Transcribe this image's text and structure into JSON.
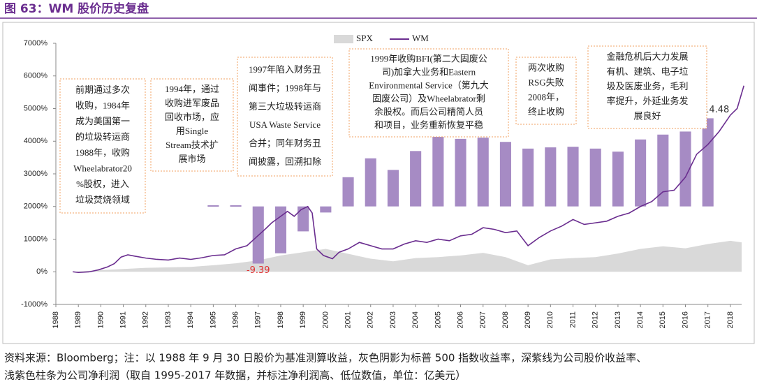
{
  "title": "图 63：WM 股价历史复盘",
  "chart_data": {
    "type": "line",
    "xlim": [
      1988,
      2018.5
    ],
    "xticks": [
      1988,
      1989,
      1990,
      1991,
      1992,
      1993,
      1994,
      1995,
      1996,
      1997,
      1998,
      1999,
      2000,
      2001,
      2002,
      2003,
      2004,
      2005,
      2006,
      2007,
      2008,
      2009,
      2010,
      2011,
      2012,
      2013,
      2014,
      2015,
      2016,
      2017,
      2018
    ],
    "ylim": [
      -1000,
      7000
    ],
    "yticks": [
      {
        "value": -1000,
        "label": "-1000%"
      },
      {
        "value": 0,
        "label": "0%"
      },
      {
        "value": 1000,
        "label": "1000%"
      },
      {
        "value": 2000,
        "label": "2000%"
      },
      {
        "value": 3000,
        "label": "3000%"
      },
      {
        "value": 4000,
        "label": "4000%"
      },
      {
        "value": 5000,
        "label": "5000%"
      },
      {
        "value": 6000,
        "label": "6000%"
      },
      {
        "value": 7000,
        "label": "7000%"
      }
    ],
    "y2lim": [
      -16.1,
      26.8
    ],
    "legend": "top",
    "series": [
      {
        "name": "SPX",
        "type": "area",
        "color": "#d9d9d9",
        "x": [
          1988.75,
          1990,
          1992,
          1994,
          1995,
          1996,
          1997,
          1998,
          1999,
          2000,
          2001,
          2002,
          2003,
          2004,
          2005,
          2006,
          2007,
          2008,
          2009,
          2010,
          2011,
          2012,
          2013,
          2014,
          2015,
          2016,
          2017,
          2018,
          2018.5
        ],
        "values": [
          0,
          50,
          120,
          150,
          200,
          260,
          350,
          500,
          600,
          700,
          550,
          400,
          320,
          420,
          450,
          500,
          580,
          450,
          200,
          380,
          420,
          450,
          560,
          700,
          780,
          720,
          850,
          950,
          900
        ]
      },
      {
        "name": "WM",
        "type": "line",
        "color": "#6a2d8f",
        "x": [
          1988.75,
          1989,
          1989.5,
          1989.9,
          1990.3,
          1990.6,
          1990.9,
          1991.2,
          1991.5,
          1992,
          1992.5,
          1993,
          1993.5,
          1994,
          1994.5,
          1995,
          1995.5,
          1996,
          1996.5,
          1996.9,
          1997.3,
          1997.6,
          1997.9,
          1998.3,
          1998.6,
          1998.9,
          1999.2,
          1999.4,
          1999.6,
          1999.9,
          2000.3,
          2000.6,
          2001,
          2001.5,
          2002,
          2002.5,
          2003,
          2003.5,
          2004,
          2004.5,
          2005,
          2005.5,
          2006,
          2006.5,
          2007,
          2007.5,
          2008,
          2008.5,
          2009,
          2009.5,
          2010,
          2010.5,
          2011,
          2011.5,
          2012,
          2012.5,
          2013,
          2013.5,
          2014,
          2014.5,
          2015,
          2015.5,
          2016,
          2016.5,
          2017,
          2017.5,
          2018,
          2018.3,
          2018.6
        ],
        "values": [
          0,
          -20,
          0,
          60,
          150,
          250,
          450,
          520,
          480,
          420,
          380,
          360,
          420,
          380,
          430,
          500,
          520,
          700,
          800,
          1050,
          1300,
          1500,
          1650,
          1850,
          1700,
          1900,
          2000,
          1800,
          700,
          500,
          400,
          600,
          700,
          900,
          800,
          700,
          700,
          850,
          950,
          900,
          1000,
          950,
          1100,
          1150,
          1350,
          1300,
          1200,
          1250,
          800,
          1050,
          1250,
          1400,
          1600,
          1450,
          1500,
          1550,
          1700,
          1800,
          2000,
          2150,
          2450,
          2500,
          2900,
          3600,
          3900,
          4300,
          4800,
          5000,
          5700
        ]
      },
      {
        "type": "bar",
        "axis": "y2",
        "color": "#a68bc4",
        "x": [
          1995,
          1996,
          1997,
          1998,
          1999,
          2000,
          2001,
          2002,
          2003,
          2004,
          2005,
          2006,
          2007,
          2008,
          2009,
          2010,
          2011,
          2012,
          2013,
          2014,
          2015,
          2016,
          2017
        ],
        "values": [
          0.19,
          0.19,
          -9.39,
          -7.7,
          -4.1,
          -1.0,
          4.8,
          7.9,
          6.0,
          9.1,
          11.5,
          11.1,
          11.3,
          10.6,
          9.5,
          9.7,
          9.8,
          9.5,
          9.0,
          11.0,
          11.8,
          12.3,
          14.48
        ],
        "value_labels": [
          null,
          null,
          "-9.39",
          null,
          null,
          null,
          null,
          null,
          null,
          null,
          null,
          null,
          null,
          null,
          null,
          null,
          null,
          null,
          null,
          null,
          null,
          null,
          "14.48"
        ]
      }
    ],
    "annotations": [
      {
        "lines": [
          "前期通过多次",
          "收购，1984年",
          "成为美国第一",
          "的垃圾转运商",
          "1988年，收购",
          "Wheelabrator20",
          "%股权，进入",
          "垃圾焚烧领域"
        ]
      },
      {
        "lines": [
          "1994年，通过",
          "收购进军废品",
          "回收市场，应",
          "用Single",
          "Stream技术扩",
          "展市场"
        ]
      },
      {
        "lines": [
          "1997年陷入财务丑",
          "闻事件；1998年与",
          "第三大垃圾转运商",
          "USA Waste Service",
          "合并；同年财务丑",
          "闻披露，回溯扣除"
        ]
      },
      {
        "lines": [
          "1999年收购BFI(第二大固废公",
          "司)加拿大业务和Eastern",
          "Environmental Service（第九大",
          "固废公司）及Wheelabrator剩",
          "余股权。而后公司精简人员",
          "和项目，业务重新恢复平稳"
        ]
      },
      {
        "lines": [
          "两次收购",
          "RSG失败",
          "2008年，",
          "终止收购"
        ]
      },
      {
        "lines": [
          "金融危机后大力发展",
          "有机、建筑、电子垃",
          "圾及医废业务，毛利",
          "率提升，外延业务发",
          "展良好"
        ]
      }
    ]
  },
  "note": [
    "资料来源：Bloomberg；注：以 1988 年 9 月 30 日股价为基准测算收益，灰色阴影为标普 500 指数收益率，深紫线为公司股价收益率、",
    "浅紫色柱条为公司净利润（取自 1995-2017 年数据，并标注净利润高、低位数值，单位：亿美元）"
  ]
}
